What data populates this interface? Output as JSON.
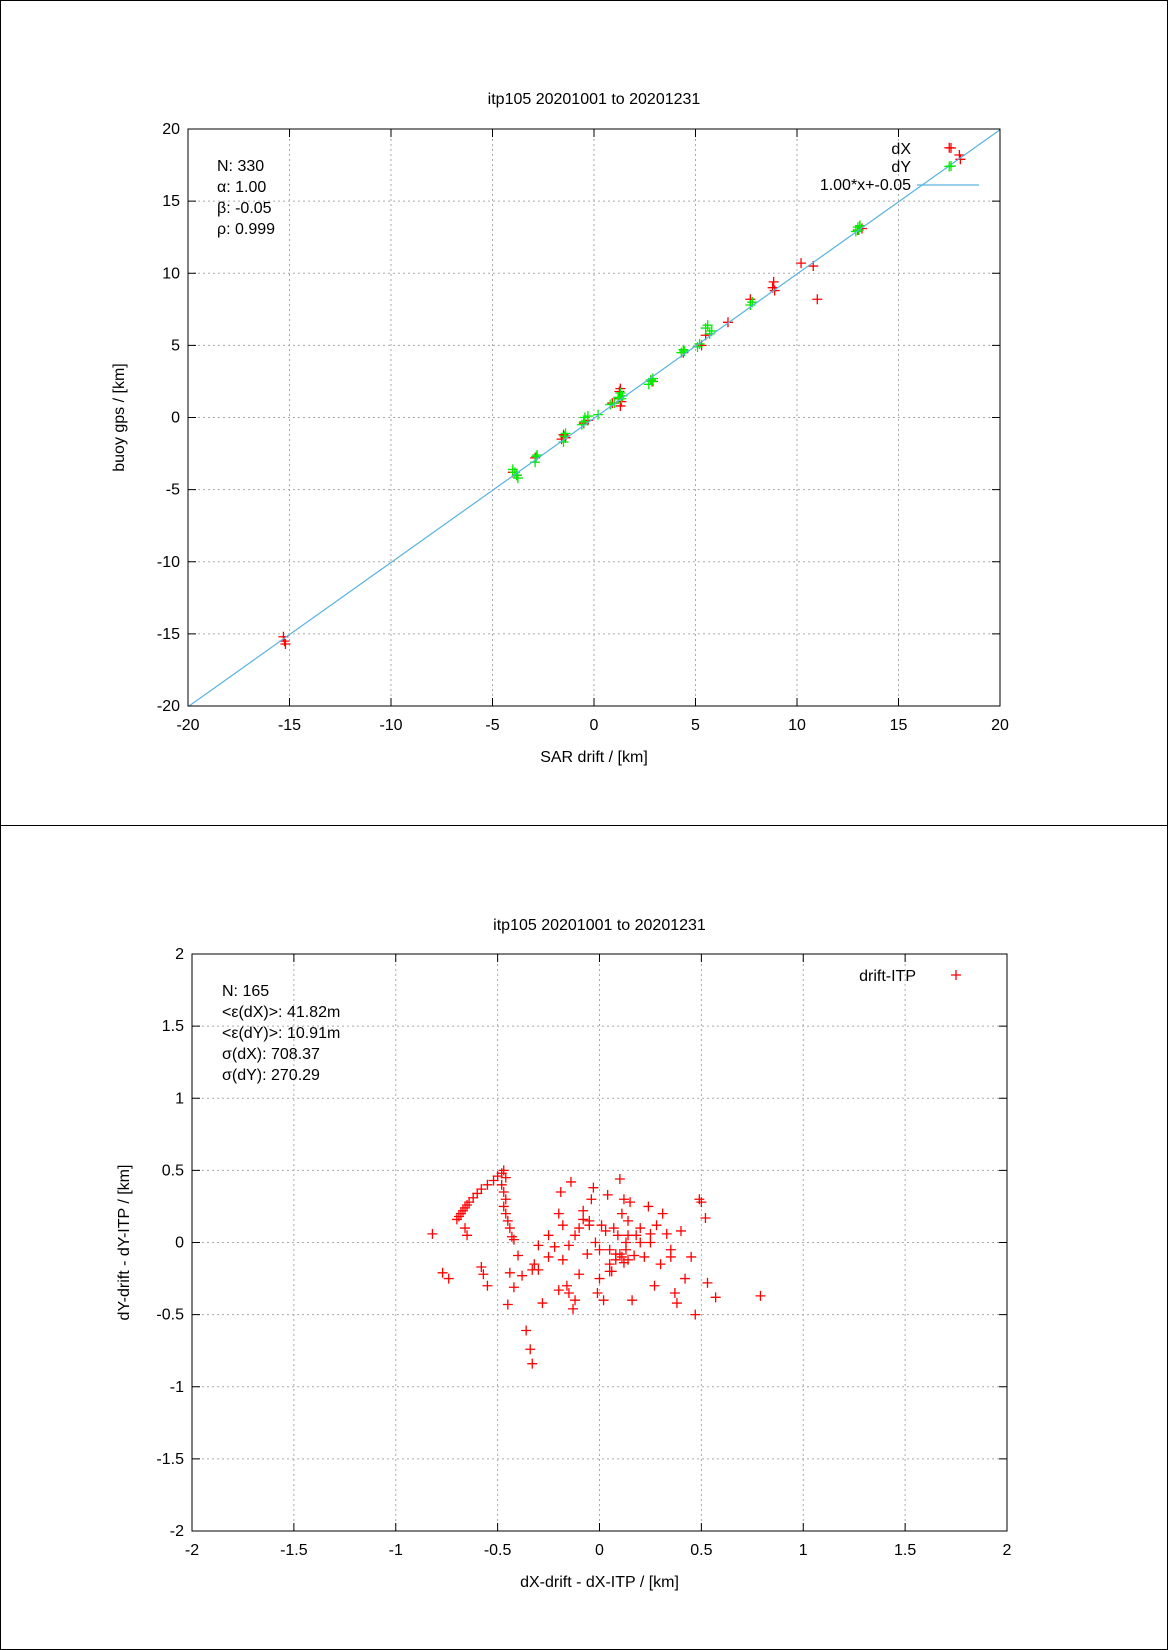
{
  "charts": [
    {
      "type": "scatter",
      "title": "itp105 20201001 to 20201231",
      "xlabel": "SAR drift / [km]",
      "ylabel": "buoy gps / [km]",
      "xlim": [
        -20,
        20
      ],
      "ylim": [
        -20,
        20
      ],
      "xticks": [
        "-20",
        "-15",
        "-10",
        "-5",
        "0",
        "5",
        "10",
        "15",
        "20"
      ],
      "yticks": [
        "-20",
        "-15",
        "-10",
        "-5",
        "0",
        "5",
        "10",
        "15",
        "20"
      ],
      "grid": true,
      "legend_placement": "top-right",
      "stats": [
        "N: 330",
        "α: 1.00",
        "β: -0.05",
        "ρ: 0.999"
      ],
      "series": [
        {
          "name": "dX",
          "color": "#ff0000",
          "marker": "plus",
          "x": [
            -15.3,
            -15.25,
            -15.2,
            -4.0,
            -3.8,
            -2.9,
            -1.6,
            -1.5,
            -1.4,
            -0.5,
            -0.3,
            0.9,
            1.2,
            1.25,
            1.3,
            1.3,
            1.35,
            1.4,
            2.8,
            2.9,
            4.4,
            5.3,
            5.5,
            6.6,
            7.7,
            7.8,
            8.8,
            8.85,
            8.9,
            10.2,
            10.8,
            11.0,
            13.0,
            13.1,
            13.2,
            17.5,
            18.0,
            18.05
          ],
          "y": [
            -15.2,
            -15.5,
            -15.7,
            -3.8,
            -4.0,
            -2.8,
            -1.5,
            -1.2,
            -1.4,
            -0.4,
            -0.2,
            1.0,
            1.3,
            1.8,
            2.0,
            0.8,
            1.1,
            1.5,
            2.6,
            2.5,
            4.5,
            5.0,
            5.7,
            6.6,
            8.2,
            8.0,
            9.0,
            9.4,
            8.8,
            10.7,
            10.5,
            8.2,
            13.0,
            13.3,
            13.1,
            18.7,
            18.2,
            17.9
          ]
        },
        {
          "name": "dY",
          "color": "#00ee00",
          "marker": "plus",
          "x": [
            -4.0,
            -3.9,
            -3.8,
            -3.75,
            -2.9,
            -2.85,
            -2.8,
            -1.5,
            -1.45,
            -1.4,
            -0.6,
            -0.5,
            -0.45,
            -0.3,
            0.2,
            0.8,
            1.0,
            1.2,
            1.3,
            1.35,
            1.4,
            2.7,
            2.8,
            2.85,
            2.9,
            4.3,
            4.4,
            4.45,
            5.1,
            5.2,
            5.5,
            5.6,
            5.7,
            5.8,
            7.7,
            7.8,
            12.9,
            13.0,
            13.05,
            13.1,
            17.5
          ],
          "y": [
            -3.6,
            -3.8,
            -4.0,
            -4.2,
            -3.1,
            -2.7,
            -2.6,
            -1.7,
            -1.3,
            -1.1,
            -0.5,
            -0.3,
            0.0,
            0.1,
            0.2,
            0.9,
            1.0,
            1.4,
            1.7,
            1.3,
            1.5,
            2.3,
            2.6,
            2.5,
            2.7,
            4.5,
            4.7,
            4.6,
            4.9,
            5.1,
            6.2,
            6.4,
            5.8,
            6.0,
            7.8,
            8.0,
            12.9,
            13.2,
            13.0,
            13.3,
            17.4
          ]
        },
        {
          "name": "1.00*x+-0.05",
          "color": "#57b3e0",
          "line": true,
          "x": [
            -20,
            20
          ],
          "y": [
            -20.05,
            19.95
          ]
        }
      ]
    },
    {
      "type": "scatter",
      "title": "itp105 20201001 to 20201231",
      "xlabel": "dX-drift - dX-ITP / [km]",
      "ylabel": "dY-drift - dY-ITP / [km]",
      "xlim": [
        -2,
        2
      ],
      "ylim": [
        -2,
        2
      ],
      "xticks": [
        "-2",
        "-1.5",
        "-1",
        "-0.5",
        "0",
        "0.5",
        "1",
        "1.5",
        "2"
      ],
      "yticks": [
        "-2",
        "-1.5",
        "-1",
        "-0.5",
        "0",
        "0.5",
        "1",
        "1.5",
        "2"
      ],
      "grid": true,
      "legend_placement": "top-right",
      "stats": [
        "N: 165",
        "<ε(dX)>:  41.82m",
        "<ε(dY)>: 10.91m",
        "σ(dX):  708.37",
        "σ(dY):  270.29"
      ],
      "series": [
        {
          "name": "drift-ITP",
          "color": "#ff0000",
          "marker": "plus",
          "x": [
            -0.82,
            -0.77,
            -0.74,
            -0.7,
            -0.69,
            -0.68,
            -0.67,
            -0.66,
            -0.65,
            -0.64,
            -0.62,
            -0.6,
            -0.58,
            -0.55,
            -0.52,
            -0.5,
            -0.48,
            -0.47,
            -0.46,
            -0.48,
            -0.47,
            -0.46,
            -0.47,
            -0.46,
            -0.45,
            -0.44,
            -0.43,
            -0.66,
            -0.65,
            -0.58,
            -0.57,
            -0.55,
            -0.45,
            -0.44,
            -0.42,
            -0.4,
            -0.38,
            -0.36,
            -0.34,
            -0.33,
            -0.33,
            -0.32,
            -0.3,
            -0.28,
            -0.25,
            -0.22,
            -0.2,
            -0.19,
            -0.18,
            -0.16,
            -0.15,
            -0.14,
            -0.13,
            -0.12,
            -0.12,
            -0.1,
            -0.08,
            -0.06,
            -0.05,
            -0.04,
            -0.03,
            -0.02,
            -0.01,
            0.0,
            0.01,
            0.02,
            0.03,
            0.04,
            0.05,
            0.05,
            0.06,
            0.07,
            0.08,
            0.09,
            0.1,
            0.1,
            0.11,
            0.11,
            0.12,
            0.12,
            0.13,
            0.13,
            0.14,
            0.14,
            0.15,
            0.16,
            0.17,
            0.18,
            0.2,
            0.22,
            0.24,
            0.25,
            0.27,
            0.28,
            0.3,
            0.31,
            0.33,
            0.35,
            0.37,
            0.38,
            0.4,
            0.42,
            0.45,
            0.47,
            0.49,
            0.5,
            0.52,
            0.53,
            0.57,
            0.79,
            -0.25,
            -0.3,
            -0.2,
            -0.1,
            0.0,
            0.05,
            -0.42,
            -0.15,
            0.25,
            0.35,
            0.2,
            -0.05,
            0.08,
            0.14,
            -0.18,
            -0.08
          ],
          "y": [
            0.06,
            -0.21,
            -0.25,
            0.16,
            0.18,
            0.2,
            0.22,
            0.24,
            0.26,
            0.28,
            0.31,
            0.34,
            0.37,
            0.4,
            0.43,
            0.46,
            0.48,
            0.5,
            0.45,
            0.4,
            0.35,
            0.3,
            0.25,
            0.2,
            0.15,
            0.1,
            0.04,
            0.1,
            0.05,
            -0.17,
            -0.22,
            -0.3,
            -0.43,
            -0.21,
            -0.31,
            -0.09,
            -0.23,
            -0.61,
            -0.74,
            -0.84,
            -0.19,
            -0.15,
            -0.02,
            -0.42,
            -0.1,
            -0.03,
            0.2,
            0.35,
            0.12,
            -0.3,
            -0.02,
            0.42,
            -0.46,
            0.05,
            -0.4,
            -0.22,
            0.22,
            -0.08,
            0.15,
            0.3,
            0.38,
            0.0,
            -0.35,
            -0.25,
            0.12,
            -0.4,
            0.08,
            0.33,
            -0.05,
            -0.15,
            -0.2,
            0.1,
            -0.12,
            0.05,
            -0.08,
            0.44,
            -0.1,
            0.2,
            -0.14,
            0.3,
            0.0,
            -0.05,
            -0.12,
            0.15,
            0.28,
            -0.4,
            -0.09,
            0.05,
            0.1,
            -0.1,
            0.25,
            0.0,
            -0.3,
            0.12,
            -0.15,
            0.2,
            0.06,
            -0.05,
            -0.35,
            -0.42,
            0.08,
            -0.25,
            -0.1,
            -0.5,
            0.3,
            0.28,
            0.17,
            -0.28,
            -0.38,
            -0.37,
            0.05,
            -0.19,
            -0.33,
            0.1,
            -0.05,
            -0.2,
            0.02,
            -0.35,
            0.06,
            -0.1,
            0.0,
            0.12,
            -0.08,
            0.05,
            -0.12,
            0.16
          ]
        }
      ]
    }
  ]
}
